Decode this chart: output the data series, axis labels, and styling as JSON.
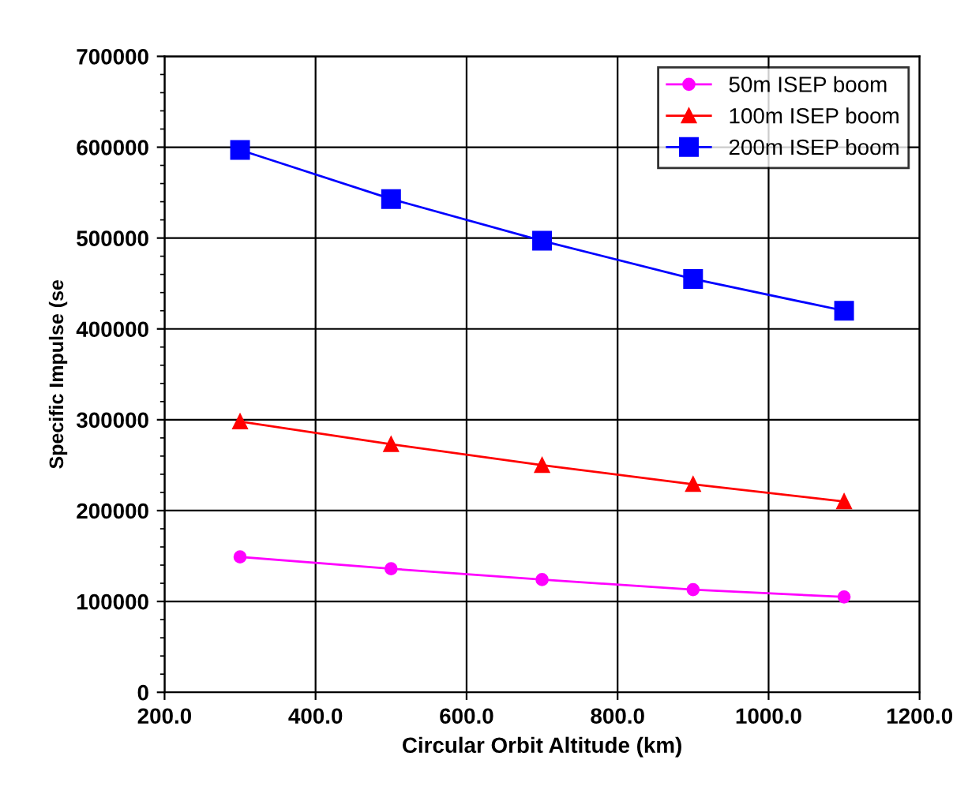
{
  "chart_data": {
    "type": "line",
    "xlabel": "Circular Orbit Altitude (km)",
    "ylabel": "Specific Impulse (se",
    "x": [
      300,
      500,
      700,
      900,
      1100
    ],
    "series": [
      {
        "name": "50m ISEP boom",
        "color": "#ff00ff",
        "marker": "circle",
        "values": [
          149000,
          136000,
          124000,
          113000,
          105000
        ]
      },
      {
        "name": "100m ISEP boom",
        "color": "#ff0000",
        "marker": "triangle",
        "values": [
          298000,
          273000,
          250000,
          229000,
          210000
        ]
      },
      {
        "name": "200m ISEP boom",
        "color": "#0000ff",
        "marker": "square",
        "values": [
          597000,
          543000,
          497000,
          455000,
          420000
        ]
      }
    ],
    "xlim": [
      200,
      1200
    ],
    "xticks": [
      {
        "value": 200,
        "label": "200.0"
      },
      {
        "value": 400,
        "label": "400.0"
      },
      {
        "value": 600,
        "label": "600.0"
      },
      {
        "value": 800,
        "label": "800.0"
      },
      {
        "value": 1000,
        "label": "1000.0"
      },
      {
        "value": 1200,
        "label": "1200.0"
      }
    ],
    "ylim": [
      0,
      700000
    ],
    "yticks": [
      0,
      100000,
      200000,
      300000,
      400000,
      500000,
      600000,
      700000
    ],
    "grid": true,
    "legend": "top right"
  }
}
